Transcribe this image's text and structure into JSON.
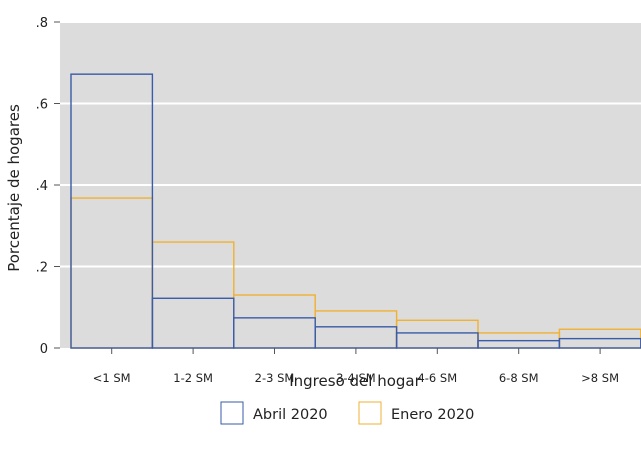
{
  "chart_data": {
    "type": "bar",
    "categories": [
      "<1 SM",
      "1-2 SM",
      "2-3 SM",
      "3-4 SM",
      "4-6 SM",
      "6-8 SM",
      ">8 SM"
    ],
    "series": [
      {
        "name": "Abril 2020",
        "color": "#3a5ba9",
        "values": [
          0.672,
          0.122,
          0.074,
          0.052,
          0.037,
          0.018,
          0.023
        ]
      },
      {
        "name": "Enero 2020",
        "color": "#f0b132",
        "values": [
          0.368,
          0.26,
          0.13,
          0.091,
          0.068,
          0.037,
          0.046
        ]
      }
    ],
    "ylim": [
      0,
      0.8
    ],
    "yticks": [
      {
        "value": 0,
        "label": "0"
      },
      {
        "value": 0.2,
        "label": ".2"
      },
      {
        "value": 0.4,
        "label": ".4"
      },
      {
        "value": 0.6,
        "label": ".6"
      },
      {
        "value": 0.8,
        "label": ".8"
      }
    ],
    "xlabel": "Ingreso del hogar",
    "ylabel": "Porcentaje de hogares",
    "grid": true,
    "legend_position": "bottom",
    "colors": {
      "plot_background": "#dcdcdc",
      "gridline": "#ffffff"
    }
  }
}
